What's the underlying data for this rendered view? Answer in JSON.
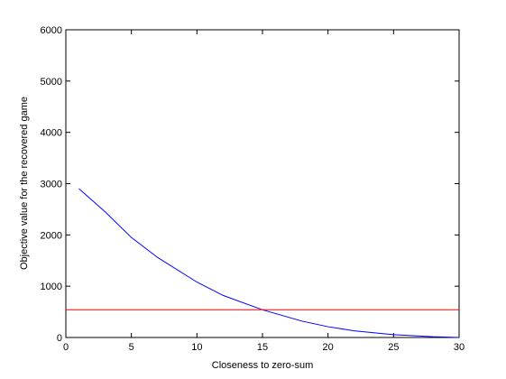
{
  "chart_data": {
    "type": "line",
    "xlabel": "Closeness to zero-sum",
    "ylabel": "Objective value for the recovered game",
    "xlim": [
      0,
      30
    ],
    "ylim": [
      0,
      6000
    ],
    "xticks": [
      0,
      5,
      10,
      15,
      20,
      25,
      30
    ],
    "yticks": [
      0,
      1000,
      2000,
      3000,
      4000,
      5000,
      6000
    ],
    "series": [
      {
        "color": "#0000ff",
        "x": [
          1,
          3,
          5,
          7,
          10,
          12,
          15,
          18,
          20,
          22,
          25,
          28,
          30
        ],
        "values": [
          2900,
          2450,
          1950,
          1560,
          1080,
          820,
          540,
          320,
          210,
          130,
          55,
          15,
          0
        ]
      },
      {
        "color": "#ff0000",
        "x": [
          0,
          30
        ],
        "values": [
          540,
          540
        ]
      }
    ]
  }
}
